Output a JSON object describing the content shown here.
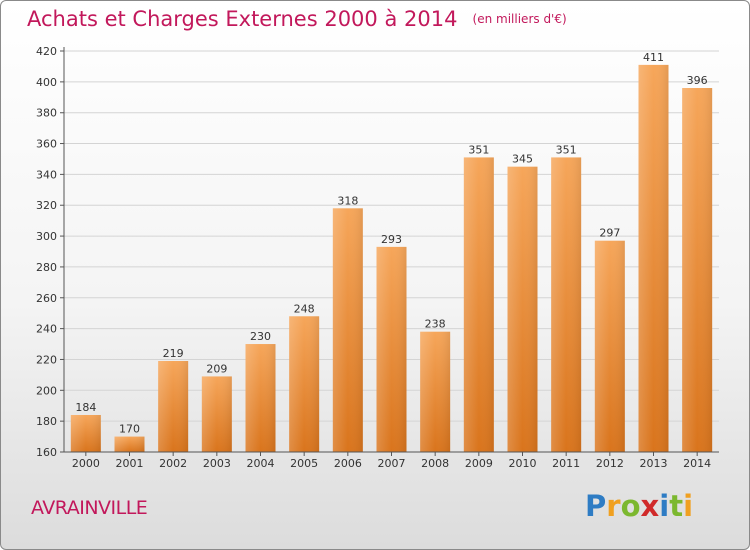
{
  "title": "Achats et Charges Externes 2000 à 2014",
  "unit_label": "(en milliers d'€)",
  "place": "AVRAINVILLE",
  "logo_text": "Proxiti",
  "colors": {
    "title": "#c2185b",
    "bar_light": "#f6a65a",
    "bar_dark": "#d9741c",
    "grid": "#d4d4d4"
  },
  "chart_data": {
    "type": "bar",
    "title": "Achats et Charges Externes 2000 à 2014",
    "subtitle": "(en milliers d'€)",
    "xlabel": "",
    "ylabel": "",
    "categories": [
      "2000",
      "2001",
      "2002",
      "2003",
      "2004",
      "2005",
      "2006",
      "2007",
      "2008",
      "2009",
      "2010",
      "2011",
      "2012",
      "2013",
      "2014"
    ],
    "values": [
      184,
      170,
      219,
      209,
      230,
      248,
      318,
      293,
      238,
      351,
      345,
      351,
      297,
      411,
      396
    ],
    "ylim": [
      160,
      420
    ],
    "yticks": [
      160,
      180,
      200,
      220,
      240,
      260,
      280,
      300,
      320,
      340,
      360,
      380,
      400,
      420
    ],
    "grid": true,
    "legend": "none",
    "data_labels": true
  }
}
